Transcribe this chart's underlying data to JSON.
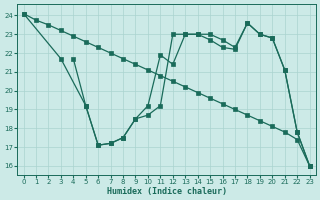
{
  "xlabel": "Humidex (Indice chaleur)",
  "xlim": [
    -0.5,
    23.5
  ],
  "ylim": [
    15.5,
    24.6
  ],
  "yticks": [
    16,
    17,
    18,
    19,
    20,
    21,
    22,
    23,
    24
  ],
  "xticks": [
    0,
    1,
    2,
    3,
    4,
    5,
    6,
    7,
    8,
    9,
    10,
    11,
    12,
    13,
    14,
    15,
    16,
    17,
    18,
    19,
    20,
    21,
    22,
    23
  ],
  "bg_color": "#cceae7",
  "grid_color": "#aad4d0",
  "line_color": "#1a6b5a",
  "series1": {
    "x": [
      0,
      1,
      2,
      3,
      4,
      5,
      6,
      7,
      8,
      9,
      10,
      11,
      12,
      13,
      14,
      15,
      16,
      17,
      18,
      19,
      20,
      21,
      22,
      23
    ],
    "y": [
      24.1,
      23.75,
      23.5,
      23.2,
      22.9,
      22.6,
      22.3,
      22.0,
      21.7,
      21.4,
      21.1,
      20.8,
      20.5,
      20.2,
      19.9,
      19.6,
      19.3,
      19.0,
      18.7,
      18.4,
      18.1,
      17.8,
      17.4,
      16.0
    ]
  },
  "series2": {
    "x": [
      0,
      3,
      5,
      6,
      7,
      8,
      9,
      10,
      11,
      12,
      13,
      14,
      15,
      16,
      17,
      18,
      19,
      20,
      21,
      22,
      23
    ],
    "y": [
      24.1,
      21.7,
      19.2,
      17.1,
      17.2,
      17.5,
      18.5,
      19.2,
      21.9,
      21.4,
      23.0,
      23.0,
      23.0,
      22.7,
      22.3,
      23.6,
      23.0,
      22.8,
      21.1,
      17.8,
      16.0
    ]
  },
  "series3": {
    "x": [
      4,
      5,
      6,
      7,
      8,
      9,
      10,
      11,
      12,
      13,
      14,
      15,
      16,
      17,
      18,
      19,
      20,
      21,
      22,
      23
    ],
    "y": [
      21.7,
      19.2,
      17.1,
      17.2,
      17.5,
      18.5,
      18.7,
      19.2,
      23.0,
      23.0,
      23.0,
      22.7,
      22.3,
      22.2,
      23.6,
      23.0,
      22.8,
      21.1,
      17.8,
      16.0
    ]
  }
}
